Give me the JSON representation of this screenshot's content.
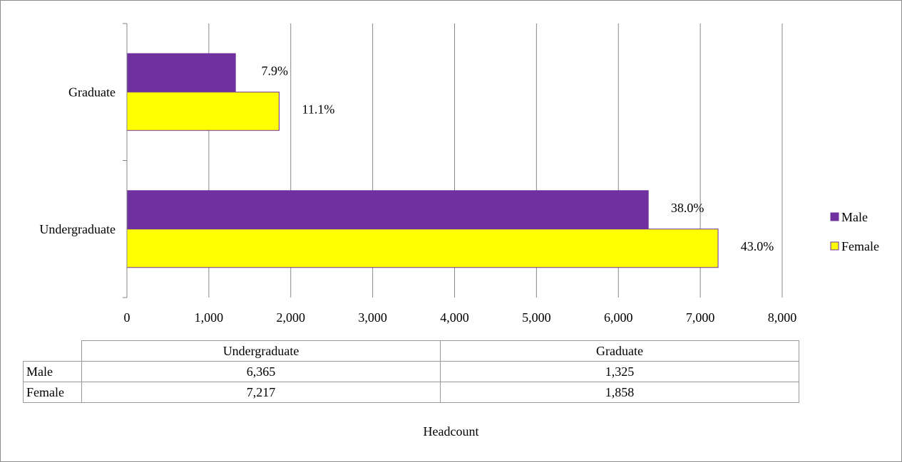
{
  "chart_data": {
    "type": "bar",
    "orientation": "horizontal",
    "categories": [
      "Undergraduate",
      "Graduate"
    ],
    "series": [
      {
        "name": "Male",
        "color": "#7030A0",
        "values": [
          6365,
          1325
        ],
        "labels": [
          "38.0%",
          "7.9%"
        ]
      },
      {
        "name": "Female",
        "color": "#FFFF00",
        "values": [
          7217,
          1858
        ],
        "labels": [
          "43.0%",
          "11.1%"
        ]
      }
    ],
    "xlim": [
      0,
      8000
    ],
    "xticks": [
      "0",
      "1,000",
      "2,000",
      "3,000",
      "4,000",
      "5,000",
      "6,000",
      "7,000",
      "8,000"
    ],
    "xlabel": "Headcount",
    "grid": "vertical",
    "legend": "right"
  },
  "table": {
    "columns": [
      "Undergraduate",
      "Graduate"
    ],
    "rows": [
      {
        "label": "Male",
        "cells": [
          "6,365",
          "1,325"
        ]
      },
      {
        "label": "Female",
        "cells": [
          "7,217",
          "1,858"
        ]
      }
    ]
  }
}
